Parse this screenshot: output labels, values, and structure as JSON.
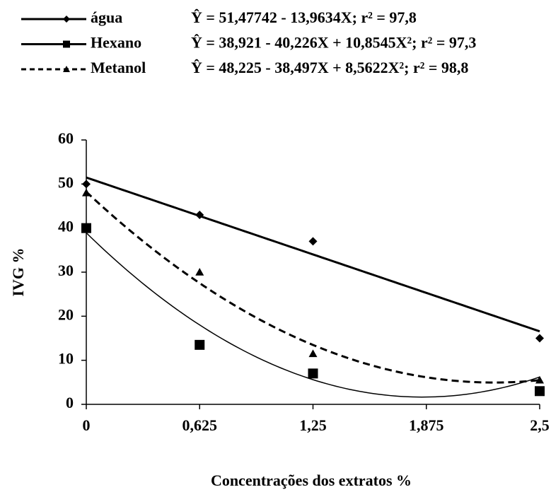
{
  "chart_data": {
    "type": "scatter",
    "x_label": "Concentrações dos extratos %",
    "y_label": "IVG %",
    "x": [
      0,
      0.625,
      1.25,
      2.5
    ],
    "xlim": [
      0,
      2.5
    ],
    "xticks": [
      0,
      {
        "value": 0.625,
        "label": "0,625"
      },
      {
        "value": 1.25,
        "label": "1,25"
      },
      {
        "value": 1.875,
        "label": "1,875"
      },
      {
        "value": 2.5,
        "label": "2,5"
      }
    ],
    "ylim": [
      0,
      60
    ],
    "yticks": [
      0,
      10,
      20,
      30,
      40,
      50,
      60
    ],
    "series": [
      {
        "name": "água",
        "color": "#000000",
        "marker": "diamond",
        "dash": "solid",
        "line_width": 3,
        "values": [
          50,
          43,
          37,
          15
        ],
        "equation": "Ŷ = 51,47742 - 13,9634X;  r² = 97,8",
        "coefficients": [
          51.47742,
          -13.9634
        ]
      },
      {
        "name": "Hexano",
        "color": "#000000",
        "marker": "square",
        "dash": "solid",
        "line_width": 1.5,
        "values": [
          40,
          13.5,
          7,
          3
        ],
        "equation": "Ŷ = 38,921 - 40,226X + 10,8545X²;  r² = 97,3",
        "coefficients": [
          38.921,
          -40.226,
          10.8545
        ]
      },
      {
        "name": "Metanol",
        "color": "#000000",
        "marker": "triangle",
        "dash": "dashed",
        "line_width": 3,
        "values": [
          48,
          30,
          11.5,
          5.5
        ],
        "equation": "Ŷ = 48,225 - 38,497X + 8,5622X²;  r² = 98,8",
        "coefficients": [
          48.225,
          -38.497,
          8.5622
        ]
      }
    ]
  }
}
